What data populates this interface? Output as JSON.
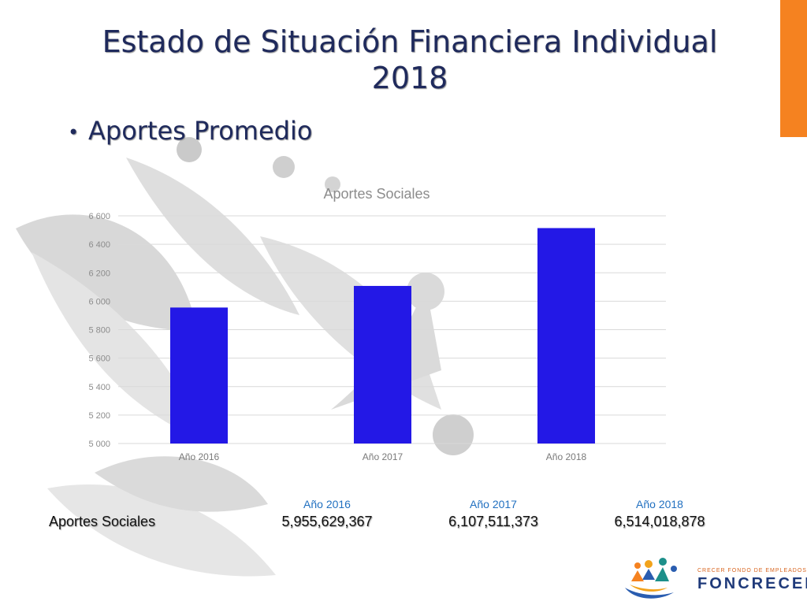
{
  "slide": {
    "title_line1": "Estado de Situación Financiera Individual",
    "title_line2": "2018",
    "bullet": "Aportes Promedio"
  },
  "colors": {
    "bar": "#2318e6",
    "title": "#1f2a5c",
    "accent": "#f58220",
    "year_heading": "#2170c0"
  },
  "chart_data": {
    "type": "bar",
    "title": "Aportes Sociales",
    "categories": [
      "Año 2016",
      "Año 2017",
      "Año 2018"
    ],
    "values": [
      5955.629367,
      6107.511373,
      6514.018878
    ],
    "ylim": [
      5000,
      6600
    ],
    "yticks": [
      5000,
      5200,
      5400,
      5600,
      5800,
      6000,
      6200,
      6400,
      6600
    ],
    "ytick_labels": [
      "5 000",
      "5 200",
      "5 400",
      "5 600",
      "5 800",
      "6 000",
      "6 200",
      "6 400",
      "6 600"
    ],
    "grid": true,
    "legend": "none"
  },
  "summary_table": {
    "headers": [
      "Año 2016",
      "Año 2017",
      "Año 2018"
    ],
    "row_label": "Aportes Sociales",
    "values": [
      "5,955,629,367",
      "6,107,511,373",
      "6,514,018,878"
    ]
  },
  "logo": {
    "tagline": "CRECER FONDO DE EMPLEADOS",
    "brand": "FONCRECER",
    "icon": "people-circle-logo-icon"
  }
}
